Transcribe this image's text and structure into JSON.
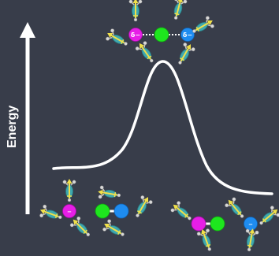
{
  "axis": {
    "label": "Energy"
  },
  "transition_state": {
    "left_partial_charge": "δ−",
    "right_partial_charge": "δ−"
  },
  "reactants": {
    "nucleophile_charge": "−"
  },
  "products": {
    "leaving_group_charge": "−"
  },
  "colors": {
    "background": "#383d4a",
    "curve": "#ffffff",
    "nucleophile": "#e61ee6",
    "carbon": "#1ee61e",
    "leaving_group": "#1e8cf0",
    "water_body": "#3ea8b0",
    "dipole_arrow": "#f0e04a",
    "hydrogen": "#c8c8c8"
  }
}
